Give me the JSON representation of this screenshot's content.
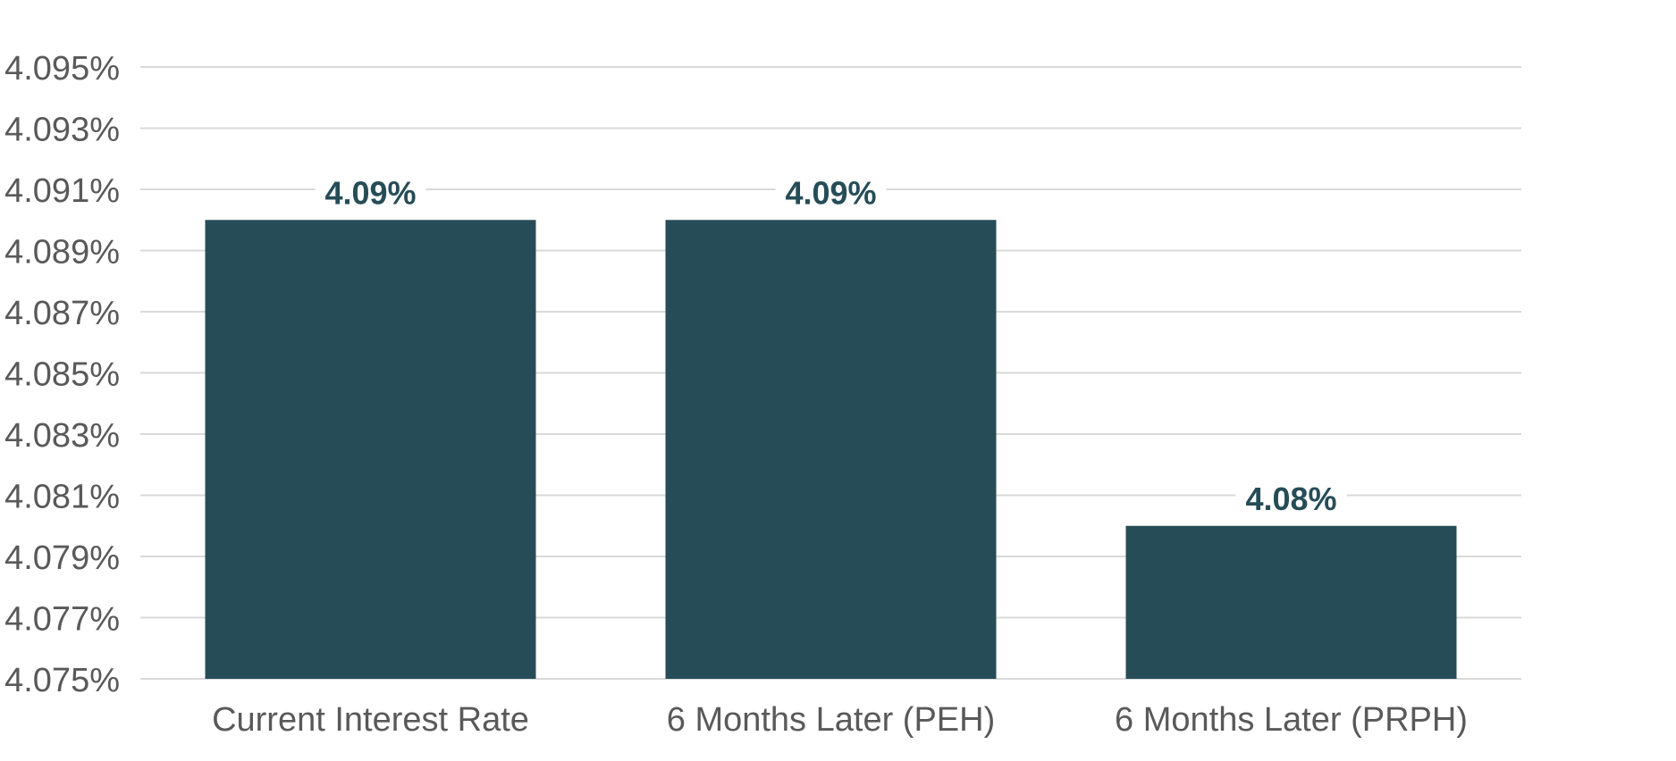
{
  "chart_data": {
    "type": "bar",
    "title": "",
    "xlabel": "",
    "ylabel": "",
    "categories": [
      "Current Interest Rate",
      "6 Months Later (PEH)",
      "6 Months Later (PRPH)"
    ],
    "values": [
      4.09,
      4.09,
      4.08
    ],
    "data_labels": [
      "4.09%",
      "4.09%",
      "4.08%"
    ],
    "ylim": [
      4.075,
      4.095
    ],
    "yticks": [
      4.075,
      4.077,
      4.079,
      4.081,
      4.083,
      4.085,
      4.087,
      4.089,
      4.091,
      4.093,
      4.095
    ],
    "ytick_labels": [
      "4.075%",
      "4.077%",
      "4.079%",
      "4.081%",
      "4.083%",
      "4.085%",
      "4.087%",
      "4.089%",
      "4.091%",
      "4.093%",
      "4.095%"
    ],
    "grid": true,
    "legend": "none",
    "colors": {
      "bar": "#264d57",
      "grid": "#d9d9d9",
      "tick_text": "#595959",
      "label_text": "#264d57"
    }
  }
}
